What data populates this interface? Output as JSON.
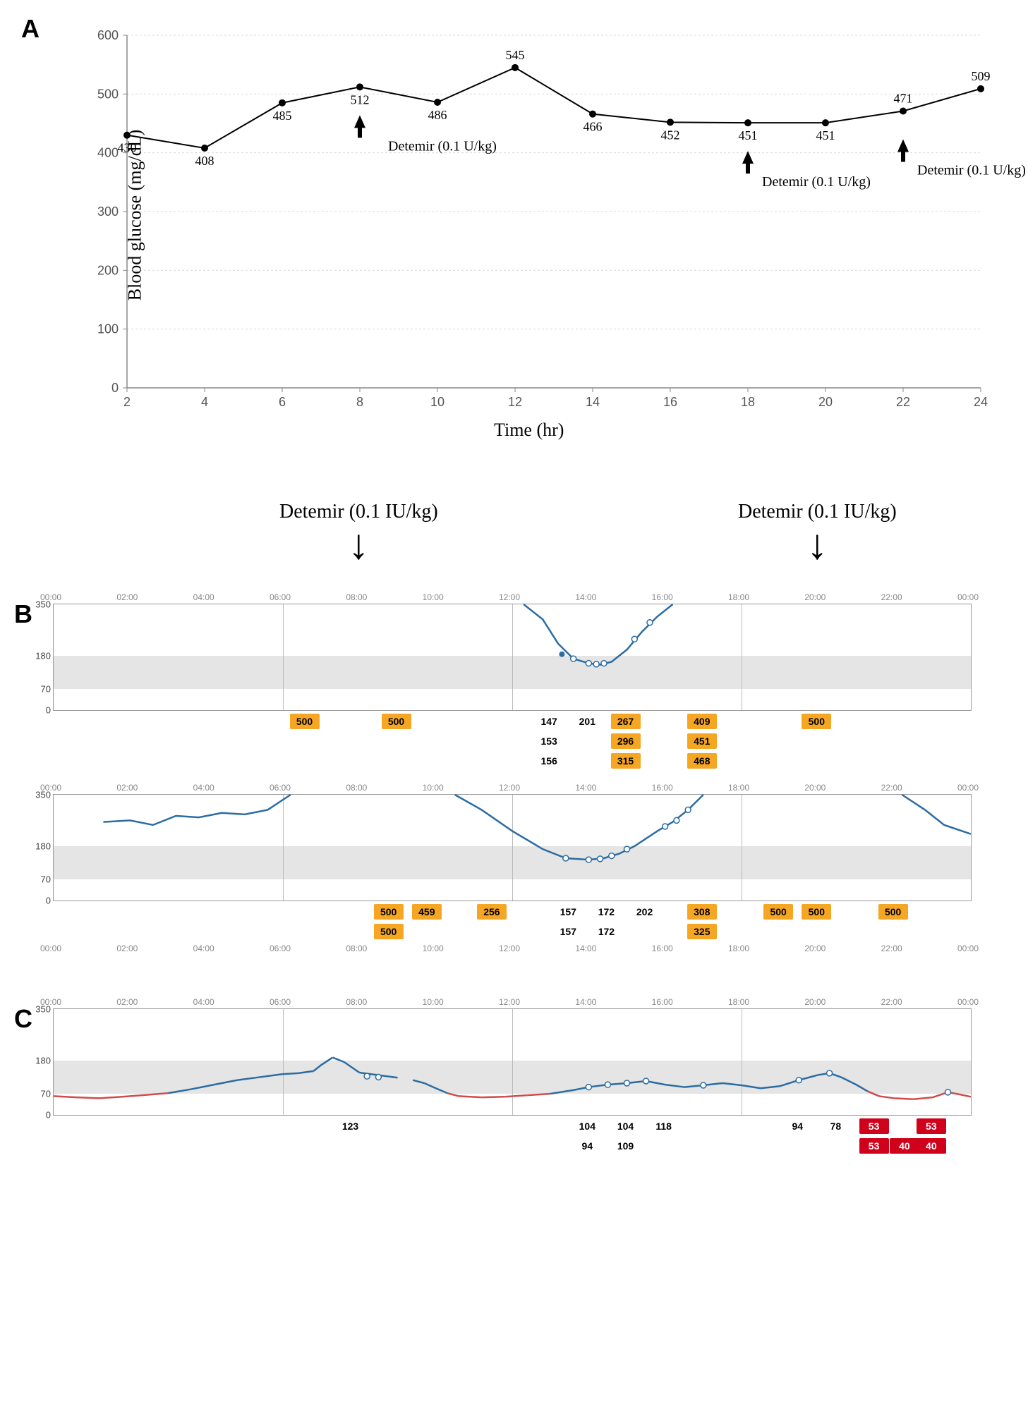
{
  "panelA": {
    "label": "A",
    "type": "line",
    "ylabel": "Blood glucose (mg/dL)",
    "xlabel": "Time (hr)",
    "ylim": [
      0,
      600
    ],
    "ytick_step": 100,
    "xticks": [
      2,
      4,
      6,
      8,
      10,
      12,
      14,
      16,
      18,
      20,
      22,
      24
    ],
    "points": [
      {
        "x": 2,
        "y": 430
      },
      {
        "x": 4,
        "y": 408
      },
      {
        "x": 6,
        "y": 485
      },
      {
        "x": 8,
        "y": 512
      },
      {
        "x": 10,
        "y": 486
      },
      {
        "x": 12,
        "y": 545
      },
      {
        "x": 14,
        "y": 466
      },
      {
        "x": 16,
        "y": 452
      },
      {
        "x": 18,
        "y": 451
      },
      {
        "x": 20,
        "y": 451
      },
      {
        "x": 22,
        "y": 471
      },
      {
        "x": 24,
        "y": 509
      }
    ],
    "line_color": "#000000",
    "marker_color": "#000000",
    "marker_radius": 5,
    "line_width": 2,
    "grid_color": "#d9d9d9",
    "axis_color": "#888888",
    "background_color": "#ffffff",
    "label_fontsize": 18,
    "axis_fontsize": 26,
    "annotations": [
      {
        "x": 8,
        "text": "Detemir (0.1 U/kg)"
      },
      {
        "x": 18,
        "text": "Detemir (0.1 U/kg)"
      },
      {
        "x": 22,
        "text": "Detemir (0.1 U/kg)"
      }
    ]
  },
  "panelB": {
    "label": "B",
    "top_annotations": [
      {
        "text": "Detemir (0.1 IU/kg)",
        "time": "08:00"
      },
      {
        "text": "Detemir (0.1 IU/kg)",
        "time": "20:00"
      }
    ],
    "yticks": [
      0,
      70,
      180,
      350
    ],
    "band": [
      70,
      180
    ],
    "xticks": [
      "00:00",
      "02:00",
      "04:00",
      "06:00",
      "08:00",
      "10:00",
      "12:00",
      "14:00",
      "16:00",
      "18:00",
      "20:00",
      "22:00",
      "00:00"
    ],
    "grid_times": [
      "06:00",
      "12:00",
      "18:00"
    ],
    "line_color": "#2b6ca3",
    "band_color": "#e5e5e5",
    "high_color": "#f5a623",
    "strip1": {
      "curve": [
        {
          "t": 12.3,
          "v": 350
        },
        {
          "t": 12.8,
          "v": 300
        },
        {
          "t": 13.2,
          "v": 220
        },
        {
          "t": 13.6,
          "v": 170
        },
        {
          "t": 14.0,
          "v": 155
        },
        {
          "t": 14.3,
          "v": 150
        },
        {
          "t": 14.6,
          "v": 160
        },
        {
          "t": 15.0,
          "v": 200
        },
        {
          "t": 15.4,
          "v": 260
        },
        {
          "t": 15.8,
          "v": 310
        },
        {
          "t": 16.2,
          "v": 350
        }
      ],
      "markers": [
        {
          "t": 13.6,
          "v": 170
        },
        {
          "t": 14.0,
          "v": 155
        },
        {
          "t": 14.2,
          "v": 152
        },
        {
          "t": 14.4,
          "v": 155
        },
        {
          "t": 15.2,
          "v": 235
        },
        {
          "t": 15.6,
          "v": 290
        }
      ],
      "dot": {
        "t": 13.3,
        "v": 185
      },
      "rows": [
        [
          {
            "t": 6.6,
            "val": 500,
            "cls": "high"
          },
          {
            "t": 9.0,
            "val": 500,
            "cls": "high"
          },
          {
            "t": 13.0,
            "val": 147,
            "cls": "normal"
          },
          {
            "t": 14.0,
            "val": 201,
            "cls": "normal"
          },
          {
            "t": 15.0,
            "val": 267,
            "cls": "high"
          },
          {
            "t": 17.0,
            "val": 409,
            "cls": "high"
          },
          {
            "t": 20.0,
            "val": 500,
            "cls": "high"
          }
        ],
        [
          {
            "t": 13.0,
            "val": 153,
            "cls": "normal"
          },
          {
            "t": 15.0,
            "val": 296,
            "cls": "high"
          },
          {
            "t": 17.0,
            "val": 451,
            "cls": "high"
          }
        ],
        [
          {
            "t": 13.0,
            "val": 156,
            "cls": "normal"
          },
          {
            "t": 15.0,
            "val": 315,
            "cls": "high"
          },
          {
            "t": 17.0,
            "val": 468,
            "cls": "high"
          }
        ]
      ]
    },
    "strip2": {
      "curve": [
        {
          "t": 1.3,
          "v": 260
        },
        {
          "t": 2.0,
          "v": 265
        },
        {
          "t": 2.6,
          "v": 250
        },
        {
          "t": 3.2,
          "v": 280
        },
        {
          "t": 3.8,
          "v": 275
        },
        {
          "t": 4.4,
          "v": 290
        },
        {
          "t": 5.0,
          "v": 285
        },
        {
          "t": 5.6,
          "v": 300
        },
        {
          "t": 6.2,
          "v": 350
        }
      ],
      "curve2": [
        {
          "t": 10.5,
          "v": 350
        },
        {
          "t": 11.2,
          "v": 300
        },
        {
          "t": 12.0,
          "v": 230
        },
        {
          "t": 12.8,
          "v": 170
        },
        {
          "t": 13.4,
          "v": 140
        },
        {
          "t": 14.0,
          "v": 135
        },
        {
          "t": 14.4,
          "v": 140
        },
        {
          "t": 14.8,
          "v": 155
        },
        {
          "t": 15.2,
          "v": 180
        },
        {
          "t": 15.8,
          "v": 230
        },
        {
          "t": 16.2,
          "v": 260
        },
        {
          "t": 16.6,
          "v": 300
        },
        {
          "t": 17.0,
          "v": 350
        }
      ],
      "curve3": [
        {
          "t": 22.2,
          "v": 350
        },
        {
          "t": 22.8,
          "v": 300
        },
        {
          "t": 23.3,
          "v": 250
        },
        {
          "t": 24.0,
          "v": 220
        }
      ],
      "markers": [
        {
          "t": 13.4,
          "v": 140
        },
        {
          "t": 14.0,
          "v": 135
        },
        {
          "t": 14.3,
          "v": 138
        },
        {
          "t": 14.6,
          "v": 148
        },
        {
          "t": 15.0,
          "v": 170
        },
        {
          "t": 16.0,
          "v": 245
        },
        {
          "t": 16.3,
          "v": 265
        },
        {
          "t": 16.6,
          "v": 300
        }
      ],
      "rows": [
        [
          {
            "t": 8.8,
            "val": 500,
            "cls": "high"
          },
          {
            "t": 9.8,
            "val": 459,
            "cls": "high"
          },
          {
            "t": 11.5,
            "val": 256,
            "cls": "high"
          },
          {
            "t": 13.5,
            "val": 157,
            "cls": "normal"
          },
          {
            "t": 14.5,
            "val": 172,
            "cls": "normal"
          },
          {
            "t": 15.5,
            "val": 202,
            "cls": "normal"
          },
          {
            "t": 17.0,
            "val": 308,
            "cls": "high"
          },
          {
            "t": 19.0,
            "val": 500,
            "cls": "high"
          },
          {
            "t": 20.0,
            "val": 500,
            "cls": "high"
          },
          {
            "t": 22.0,
            "val": 500,
            "cls": "high"
          }
        ],
        [
          {
            "t": 8.8,
            "val": 500,
            "cls": "high"
          },
          {
            "t": 13.5,
            "val": 157,
            "cls": "normal"
          },
          {
            "t": 14.5,
            "val": 172,
            "cls": "normal"
          },
          {
            "t": 17.0,
            "val": 325,
            "cls": "high"
          }
        ]
      ]
    }
  },
  "panelC": {
    "label": "C",
    "yticks": [
      0,
      70,
      180,
      350
    ],
    "band": [
      70,
      180
    ],
    "xticks": [
      "00:00",
      "02:00",
      "04:00",
      "06:00",
      "08:00",
      "10:00",
      "12:00",
      "14:00",
      "16:00",
      "18:00",
      "20:00",
      "22:00",
      "00:00"
    ],
    "grid_times": [
      "06:00",
      "12:00",
      "18:00"
    ],
    "low_segment_color": "#d14b4b",
    "line_color": "#2b6ca3",
    "band_color": "#e5e5e5",
    "curve": [
      {
        "t": 0.0,
        "v": 62,
        "low": true
      },
      {
        "t": 0.6,
        "v": 58,
        "low": true
      },
      {
        "t": 1.2,
        "v": 55,
        "low": true
      },
      {
        "t": 1.8,
        "v": 60,
        "low": true
      },
      {
        "t": 2.4,
        "v": 66,
        "low": true
      },
      {
        "t": 3.0,
        "v": 72
      },
      {
        "t": 3.6,
        "v": 85
      },
      {
        "t": 4.2,
        "v": 100
      },
      {
        "t": 4.8,
        "v": 115
      },
      {
        "t": 5.4,
        "v": 125
      },
      {
        "t": 6.0,
        "v": 135
      },
      {
        "t": 6.4,
        "v": 138
      },
      {
        "t": 6.8,
        "v": 145
      },
      {
        "t": 7.0,
        "v": 165
      },
      {
        "t": 7.3,
        "v": 190
      },
      {
        "t": 7.6,
        "v": 175
      },
      {
        "t": 8.0,
        "v": 140
      },
      {
        "t": 9.0,
        "v": 123
      }
    ],
    "markers_open": [
      {
        "t": 8.2,
        "v": 128
      },
      {
        "t": 8.5,
        "v": 125
      }
    ],
    "curve2": [
      {
        "t": 9.4,
        "v": 115
      },
      {
        "t": 9.7,
        "v": 105
      },
      {
        "t": 10.0,
        "v": 88
      },
      {
        "t": 10.3,
        "v": 72
      },
      {
        "t": 10.6,
        "v": 62,
        "low": true
      },
      {
        "t": 11.2,
        "v": 58,
        "low": true
      },
      {
        "t": 11.8,
        "v": 60,
        "low": true
      },
      {
        "t": 12.4,
        "v": 65,
        "low": true
      },
      {
        "t": 13.0,
        "v": 70
      },
      {
        "t": 13.6,
        "v": 82
      },
      {
        "t": 14.0,
        "v": 92
      },
      {
        "t": 14.5,
        "v": 100
      },
      {
        "t": 15.0,
        "v": 105
      },
      {
        "t": 15.5,
        "v": 112
      },
      {
        "t": 16.0,
        "v": 100
      },
      {
        "t": 16.5,
        "v": 92
      },
      {
        "t": 17.0,
        "v": 98
      },
      {
        "t": 17.5,
        "v": 105
      },
      {
        "t": 18.0,
        "v": 98
      },
      {
        "t": 18.5,
        "v": 88
      },
      {
        "t": 19.0,
        "v": 95
      },
      {
        "t": 19.5,
        "v": 115
      },
      {
        "t": 20.0,
        "v": 132
      },
      {
        "t": 20.3,
        "v": 138
      },
      {
        "t": 20.6,
        "v": 125
      },
      {
        "t": 21.0,
        "v": 100
      },
      {
        "t": 21.3,
        "v": 78
      },
      {
        "t": 21.6,
        "v": 62,
        "low": true
      },
      {
        "t": 22.0,
        "v": 55,
        "low": true
      },
      {
        "t": 22.5,
        "v": 52,
        "low": true
      },
      {
        "t": 23.0,
        "v": 58,
        "low": true
      },
      {
        "t": 23.4,
        "v": 75
      },
      {
        "t": 23.7,
        "v": 68,
        "low": true
      },
      {
        "t": 24.0,
        "v": 60,
        "low": true
      }
    ],
    "markers2": [
      {
        "t": 14.0,
        "v": 92
      },
      {
        "t": 14.5,
        "v": 100
      },
      {
        "t": 15.0,
        "v": 105
      },
      {
        "t": 15.5,
        "v": 112
      },
      {
        "t": 17.0,
        "v": 98
      },
      {
        "t": 19.5,
        "v": 115
      },
      {
        "t": 20.3,
        "v": 138
      },
      {
        "t": 23.4,
        "v": 75
      }
    ],
    "rows": [
      [
        {
          "t": 7.8,
          "val": 123,
          "cls": "normal"
        },
        {
          "t": 14.0,
          "val": 104,
          "cls": "normal"
        },
        {
          "t": 15.0,
          "val": 104,
          "cls": "normal"
        },
        {
          "t": 16.0,
          "val": 118,
          "cls": "normal"
        },
        {
          "t": 19.5,
          "val": 94,
          "cls": "normal"
        },
        {
          "t": 20.5,
          "val": 78,
          "cls": "normal"
        },
        {
          "t": 21.5,
          "val": 53,
          "cls": "low"
        },
        {
          "t": 23.0,
          "val": 53,
          "cls": "low"
        }
      ],
      [
        {
          "t": 14.0,
          "val": 94,
          "cls": "normal"
        },
        {
          "t": 15.0,
          "val": 109,
          "cls": "normal"
        },
        {
          "t": 21.5,
          "val": 53,
          "cls": "low"
        },
        {
          "t": 22.3,
          "val": 40,
          "cls": "low"
        },
        {
          "t": 23.0,
          "val": 40,
          "cls": "low"
        }
      ]
    ]
  },
  "colors": {
    "high_bg": "#f5a623",
    "low_bg": "#d0021b",
    "normal_bg": "transparent"
  }
}
